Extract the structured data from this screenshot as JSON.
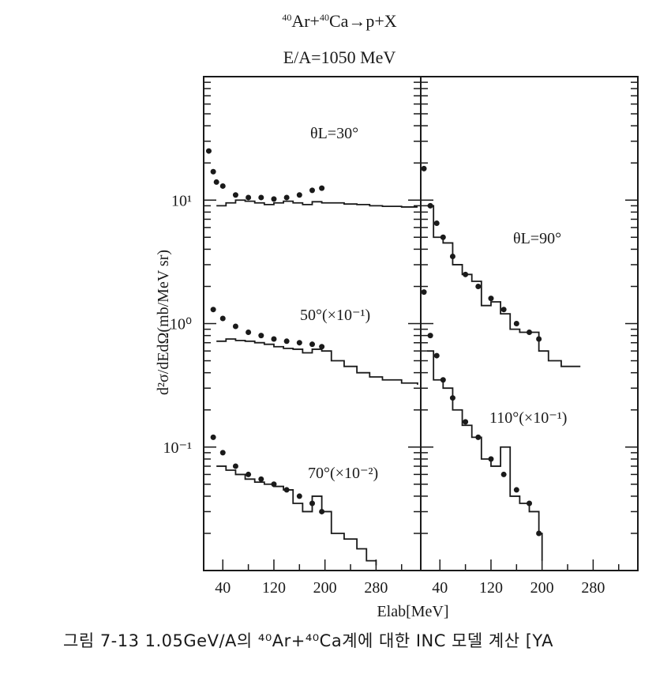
{
  "header": {
    "title_line1": "⁴⁰Ar+⁴⁰Ca→p+X",
    "title_line2": "E/A=1050 MeV"
  },
  "caption": "그림 7-13 1.05GeV/A의 ⁴⁰Ar+⁴⁰Ca계에 대한 INC 모델 계산 [YA",
  "chart_data": {
    "type": "line",
    "ylabel": "d²σ/dEdΩ(mb/MeV sr)",
    "xlabel": "Elab[MeV]",
    "y_scale": "log",
    "ylim": [
      0.01,
      100
    ],
    "y_ticks": [
      "10¹",
      "10⁰",
      "10⁻¹"
    ],
    "panels": [
      {
        "name": "left",
        "xlim": [
          10,
          350
        ],
        "x_ticks": [
          "40",
          "120",
          "200",
          "280"
        ],
        "series": [
          {
            "name": "θL=30°",
            "points": [
              [
                18,
                25
              ],
              [
                25,
                17
              ],
              [
                30,
                14
              ],
              [
                40,
                13
              ],
              [
                60,
                11
              ],
              [
                80,
                10.5
              ],
              [
                100,
                10.5
              ],
              [
                120,
                10.2
              ],
              [
                140,
                10.5
              ],
              [
                160,
                11
              ],
              [
                180,
                12
              ],
              [
                195,
                12.5
              ]
            ],
            "histogram": [
              [
                30,
                9
              ],
              [
                45,
                9.5
              ],
              [
                60,
                10
              ],
              [
                75,
                9.8
              ],
              [
                90,
                9.5
              ],
              [
                105,
                9.2
              ],
              [
                120,
                9.5
              ],
              [
                135,
                9.8
              ],
              [
                150,
                9.5
              ],
              [
                165,
                9.2
              ],
              [
                180,
                9.7
              ],
              [
                195,
                9.5
              ],
              [
                210,
                9.5
              ],
              [
                230,
                9.3
              ],
              [
                250,
                9.2
              ],
              [
                270,
                9
              ],
              [
                290,
                8.9
              ],
              [
                320,
                8.8
              ],
              [
                345,
                8.8
              ]
            ]
          },
          {
            "name": "50°(×10⁻¹)",
            "points": [
              [
                25,
                1.3
              ],
              [
                40,
                1.1
              ],
              [
                60,
                0.95
              ],
              [
                80,
                0.85
              ],
              [
                100,
                0.8
              ],
              [
                120,
                0.75
              ],
              [
                140,
                0.72
              ],
              [
                160,
                0.7
              ],
              [
                180,
                0.68
              ],
              [
                195,
                0.65
              ]
            ],
            "histogram": [
              [
                30,
                0.72
              ],
              [
                45,
                0.75
              ],
              [
                60,
                0.73
              ],
              [
                75,
                0.72
              ],
              [
                90,
                0.7
              ],
              [
                105,
                0.68
              ],
              [
                120,
                0.65
              ],
              [
                135,
                0.63
              ],
              [
                150,
                0.62
              ],
              [
                165,
                0.58
              ],
              [
                180,
                0.62
              ],
              [
                195,
                0.6
              ],
              [
                210,
                0.5
              ],
              [
                230,
                0.45
              ],
              [
                250,
                0.4
              ],
              [
                270,
                0.37
              ],
              [
                290,
                0.35
              ],
              [
                320,
                0.33
              ],
              [
                345,
                0.32
              ]
            ]
          },
          {
            "name": "70°(×10⁻²)",
            "points": [
              [
                25,
                0.12
              ],
              [
                40,
                0.09
              ],
              [
                60,
                0.07
              ],
              [
                80,
                0.06
              ],
              [
                100,
                0.055
              ],
              [
                120,
                0.05
              ],
              [
                140,
                0.045
              ],
              [
                160,
                0.04
              ],
              [
                180,
                0.035
              ],
              [
                195,
                0.03
              ]
            ],
            "histogram": [
              [
                30,
                0.07
              ],
              [
                45,
                0.065
              ],
              [
                60,
                0.06
              ],
              [
                75,
                0.055
              ],
              [
                90,
                0.052
              ],
              [
                105,
                0.05
              ],
              [
                120,
                0.048
              ],
              [
                135,
                0.045
              ],
              [
                150,
                0.035
              ],
              [
                165,
                0.03
              ],
              [
                180,
                0.04
              ],
              [
                195,
                0.03
              ],
              [
                210,
                0.02
              ],
              [
                230,
                0.018
              ],
              [
                250,
                0.015
              ],
              [
                265,
                0.012
              ],
              [
                280,
                0.011
              ]
            ]
          }
        ]
      },
      {
        "name": "right",
        "xlim": [
          10,
          350
        ],
        "x_ticks": [
          "40",
          "120",
          "200",
          "280"
        ],
        "series": [
          {
            "name": "θL=90°",
            "points": [
              [
                15,
                18
              ],
              [
                25,
                9
              ],
              [
                35,
                6.5
              ],
              [
                45,
                5
              ],
              [
                60,
                3.5
              ],
              [
                80,
                2.5
              ],
              [
                100,
                2
              ],
              [
                120,
                1.6
              ],
              [
                140,
                1.3
              ],
              [
                160,
                1
              ],
              [
                180,
                0.85
              ],
              [
                195,
                0.75
              ]
            ],
            "histogram": [
              [
                20,
                9
              ],
              [
                30,
                5
              ],
              [
                45,
                4.5
              ],
              [
                60,
                3
              ],
              [
                75,
                2.5
              ],
              [
                90,
                2.2
              ],
              [
                105,
                1.4
              ],
              [
                120,
                1.5
              ],
              [
                135,
                1.2
              ],
              [
                150,
                0.9
              ],
              [
                165,
                0.85
              ],
              [
                180,
                0.85
              ],
              [
                195,
                0.6
              ],
              [
                210,
                0.5
              ],
              [
                230,
                0.45
              ],
              [
                260,
                0.45
              ]
            ]
          },
          {
            "name": "110°(×10⁻¹)",
            "points": [
              [
                15,
                1.8
              ],
              [
                25,
                0.8
              ],
              [
                35,
                0.55
              ],
              [
                45,
                0.35
              ],
              [
                60,
                0.25
              ],
              [
                80,
                0.16
              ],
              [
                100,
                0.12
              ],
              [
                120,
                0.08
              ],
              [
                140,
                0.06
              ],
              [
                160,
                0.045
              ],
              [
                180,
                0.035
              ],
              [
                195,
                0.02
              ]
            ],
            "histogram": [
              [
                20,
                0.6
              ],
              [
                30,
                0.35
              ],
              [
                45,
                0.3
              ],
              [
                60,
                0.2
              ],
              [
                75,
                0.15
              ],
              [
                90,
                0.12
              ],
              [
                105,
                0.08
              ],
              [
                120,
                0.07
              ],
              [
                135,
                0.1
              ],
              [
                150,
                0.04
              ],
              [
                165,
                0.035
              ],
              [
                180,
                0.03
              ],
              [
                195,
                0.02
              ],
              [
                200,
                0.012
              ]
            ]
          }
        ]
      }
    ],
    "annotations": [
      "θL=30°",
      "50°(×10⁻¹)",
      "70°(×10⁻²)",
      "θL=90°",
      "110°(×10⁻¹)"
    ]
  }
}
